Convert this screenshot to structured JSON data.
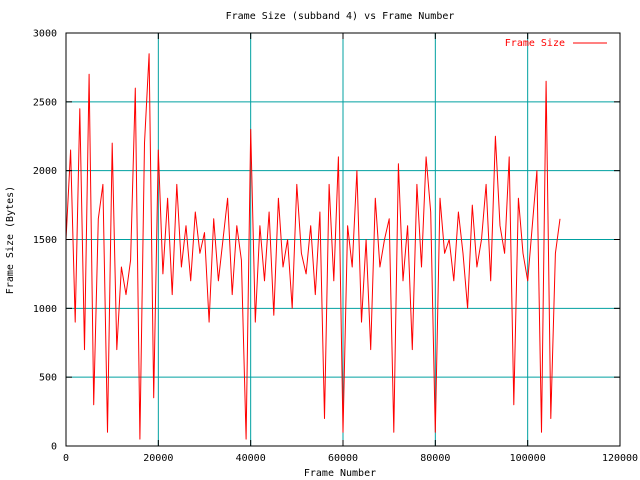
{
  "chart_data": {
    "type": "line",
    "title": "Frame Size (subband 4) vs Frame Number",
    "xlabel": "Frame Number",
    "ylabel": "Frame Size (Bytes)",
    "xlim": [
      0,
      120000
    ],
    "ylim": [
      0,
      3000
    ],
    "x_ticks": [
      0,
      20000,
      40000,
      60000,
      80000,
      100000,
      120000
    ],
    "y_ticks": [
      0,
      500,
      1000,
      1500,
      2000,
      2500,
      3000
    ],
    "grid": true,
    "legend_position": "top-right",
    "series": [
      {
        "name": "Frame Size",
        "color": "#ff0000",
        "x": [
          0,
          1000,
          2000,
          3000,
          4000,
          5000,
          6000,
          7000,
          8000,
          9000,
          10000,
          11000,
          12000,
          13000,
          14000,
          15000,
          16000,
          17000,
          18000,
          19000,
          20000,
          21000,
          22000,
          23000,
          24000,
          25000,
          26000,
          27000,
          28000,
          29000,
          30000,
          31000,
          32000,
          33000,
          34000,
          35000,
          36000,
          37000,
          38000,
          39000,
          40000,
          41000,
          42000,
          43000,
          44000,
          45000,
          46000,
          47000,
          48000,
          49000,
          50000,
          51000,
          52000,
          53000,
          54000,
          55000,
          56000,
          57000,
          58000,
          59000,
          60000,
          61000,
          62000,
          63000,
          64000,
          65000,
          66000,
          67000,
          68000,
          69000,
          70000,
          71000,
          72000,
          73000,
          74000,
          75000,
          76000,
          77000,
          78000,
          79000,
          80000,
          81000,
          82000,
          83000,
          84000,
          85000,
          86000,
          87000,
          88000,
          89000,
          90000,
          91000,
          92000,
          93000,
          94000,
          95000,
          96000,
          97000,
          98000,
          99000,
          100000,
          101000,
          102000,
          103000,
          104000,
          105000,
          106000,
          107000
        ],
        "y": [
          1500,
          2150,
          900,
          2450,
          700,
          2700,
          300,
          1650,
          1900,
          100,
          2200,
          700,
          1300,
          1100,
          1350,
          2600,
          50,
          2200,
          2850,
          350,
          2150,
          1250,
          1800,
          1100,
          1900,
          1300,
          1600,
          1200,
          1700,
          1400,
          1550,
          900,
          1650,
          1200,
          1500,
          1800,
          1100,
          1600,
          1350,
          50,
          2300,
          900,
          1600,
          1200,
          1700,
          950,
          1800,
          1300,
          1500,
          1000,
          1900,
          1400,
          1250,
          1600,
          1100,
          1700,
          200,
          1900,
          1200,
          2100,
          100,
          1600,
          1300,
          2000,
          900,
          1500,
          700,
          1800,
          1300,
          1500,
          1650,
          100,
          2050,
          1200,
          1600,
          700,
          1900,
          1300,
          2100,
          1700,
          100,
          1800,
          1400,
          1500,
          1200,
          1700,
          1400,
          1000,
          1750,
          1300,
          1500,
          1900,
          1200,
          2250,
          1600,
          1400,
          2100,
          300,
          1800,
          1400,
          1200,
          1600,
          2000,
          100,
          2650,
          200,
          1400,
          1650
        ]
      }
    ]
  }
}
